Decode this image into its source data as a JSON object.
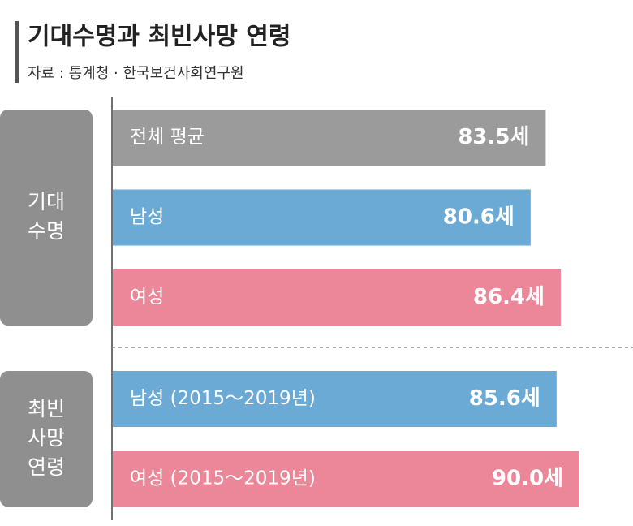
{
  "chart_data": {
    "type": "bar",
    "title": "기대수명과 최빈사망 연령",
    "subtitle": "자료 : 통계청 · 한국보건사회연구원",
    "xlim": [
      0,
      100
    ],
    "groups": [
      {
        "label": [
          "기대",
          "수명"
        ],
        "categories": [
          "전체 평균",
          "남성",
          "여성"
        ],
        "values": [
          83.5,
          80.6,
          86.4
        ],
        "value_labels": [
          "83.5세",
          "80.6세",
          "86.4세"
        ],
        "colors": [
          "#9b9b9b",
          "#6aaad4",
          "#ec8799"
        ]
      },
      {
        "label": [
          "최빈",
          "사망",
          "연령"
        ],
        "categories": [
          "남성 (2015～2019년)",
          "여성 (2015～2019년)"
        ],
        "values": [
          85.6,
          90.0
        ],
        "value_labels": [
          "85.6세",
          "90.0세"
        ],
        "colors": [
          "#6aaad4",
          "#ec8799"
        ]
      }
    ]
  }
}
